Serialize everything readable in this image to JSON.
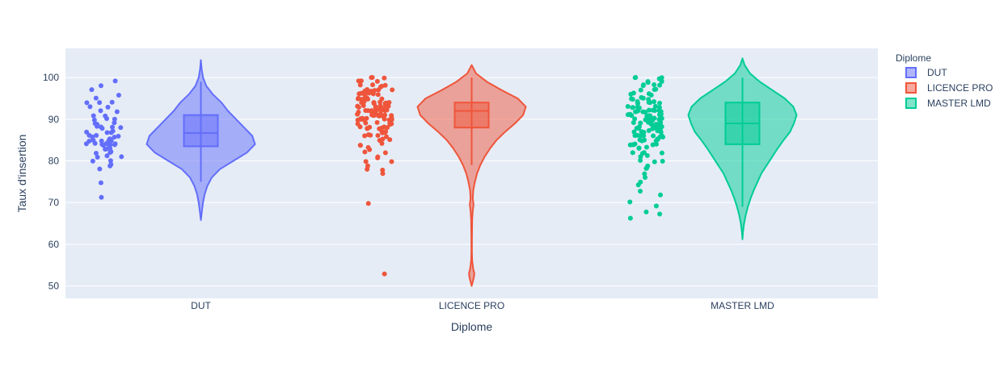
{
  "chart_data": {
    "type": "violin",
    "title": "",
    "xlabel": "Diplome",
    "ylabel": "Taux d'insertion",
    "categories": [
      "DUT",
      "LICENCE PRO",
      "MASTER LMD"
    ],
    "y_ticks": [
      50,
      60,
      70,
      80,
      90,
      100
    ],
    "y_tick_labels": [
      "50",
      "60",
      "70",
      "80",
      "90",
      "100"
    ],
    "ylim": [
      47,
      107
    ],
    "grid": true,
    "show_points": "all",
    "show_box": true,
    "legend": {
      "title": "Diplome",
      "placement": "top-right",
      "items": [
        "DUT",
        "LICENCE PRO",
        "MASTER LMD"
      ]
    },
    "series": [
      {
        "name": "DUT",
        "color": "#636efa",
        "points": [
          84,
          85,
          84,
          86,
          87,
          88,
          89,
          90,
          91,
          92,
          93,
          94,
          95,
          96,
          98,
          99,
          97,
          94,
          88,
          87,
          85,
          84,
          83,
          82,
          81,
          80,
          79,
          78,
          75,
          71,
          84,
          85,
          86,
          88,
          90,
          91,
          93,
          94,
          84,
          83,
          84,
          85,
          86,
          87,
          85,
          84,
          82,
          81,
          80,
          79,
          83,
          85,
          86,
          88,
          89,
          90,
          92,
          84,
          85,
          86,
          87,
          88,
          89,
          84,
          83,
          84,
          85,
          84,
          82,
          81
        ],
        "box": {
          "q1": 83.5,
          "median": 86.7,
          "q3": 91,
          "lower_fence": 75,
          "upper_fence": 99
        },
        "kde_range": [
          65.8,
          104.2
        ],
        "kde": [
          [
            65.8,
            0.0
          ],
          [
            68,
            0.02
          ],
          [
            70,
            0.04
          ],
          [
            72,
            0.07
          ],
          [
            74,
            0.12
          ],
          [
            76,
            0.2
          ],
          [
            78,
            0.35
          ],
          [
            80,
            0.6
          ],
          [
            82,
            0.85
          ],
          [
            84,
            1.0
          ],
          [
            86,
            0.95
          ],
          [
            88,
            0.8
          ],
          [
            90,
            0.65
          ],
          [
            92,
            0.5
          ],
          [
            94,
            0.38
          ],
          [
            96,
            0.22
          ],
          [
            98,
            0.1
          ],
          [
            100,
            0.04
          ],
          [
            102,
            0.015
          ],
          [
            104.2,
            0.0
          ]
        ]
      },
      {
        "name": "LICENCE PRO",
        "color": "#ef553b",
        "points": [
          88,
          89,
          90,
          91,
          92,
          93,
          94,
          95,
          96,
          97,
          98,
          99,
          100,
          87,
          86,
          85,
          84,
          83,
          82,
          81,
          80,
          79,
          78,
          77,
          88,
          90,
          92,
          94,
          96,
          98,
          99,
          100,
          86,
          89,
          91,
          93,
          95,
          97,
          90,
          92,
          94,
          88,
          87,
          91,
          93,
          95,
          96,
          92,
          90,
          89,
          88,
          91,
          93,
          94,
          97,
          98,
          70,
          53,
          84,
          86,
          88,
          90,
          92,
          94,
          96,
          91,
          93,
          95,
          97,
          89,
          87,
          85,
          83,
          81,
          90,
          92,
          94,
          96,
          98,
          100,
          89,
          91,
          93,
          95,
          97,
          99,
          88,
          86,
          84,
          82,
          80,
          78,
          90,
          91,
          92,
          93,
          94,
          95,
          96,
          97,
          98,
          89,
          88,
          87,
          86,
          85,
          90,
          92,
          94,
          96,
          91,
          93,
          95,
          88,
          90,
          92,
          94,
          93,
          92,
          91,
          90,
          94,
          95,
          96,
          93,
          92,
          91
        ],
        "box": {
          "q1": 88,
          "median": 92,
          "q3": 94,
          "lower_fence": 79,
          "upper_fence": 100
        },
        "kde_range": [
          50,
          103
        ],
        "kde": [
          [
            50,
            0.0
          ],
          [
            51,
            0.02
          ],
          [
            52,
            0.04
          ],
          [
            53,
            0.05
          ],
          [
            54,
            0.03
          ],
          [
            56,
            0.01
          ],
          [
            58,
            0.005
          ],
          [
            60,
            0.005
          ],
          [
            62,
            0.006
          ],
          [
            64,
            0.008
          ],
          [
            66,
            0.01
          ],
          [
            68,
            0.02
          ],
          [
            69.5,
            0.035
          ],
          [
            71,
            0.02
          ],
          [
            73,
            0.03
          ],
          [
            75,
            0.06
          ],
          [
            77,
            0.1
          ],
          [
            79,
            0.16
          ],
          [
            81,
            0.24
          ],
          [
            83,
            0.34
          ],
          [
            85,
            0.46
          ],
          [
            87,
            0.62
          ],
          [
            89,
            0.8
          ],
          [
            91,
            0.95
          ],
          [
            93,
            1.0
          ],
          [
            95,
            0.85
          ],
          [
            97,
            0.55
          ],
          [
            99,
            0.28
          ],
          [
            101,
            0.08
          ],
          [
            103,
            0.0
          ]
        ]
      },
      {
        "name": "MASTER LMD",
        "color": "#00cc96",
        "points": [
          66,
          67,
          68,
          69,
          70,
          72,
          73,
          74,
          75,
          76,
          77,
          78,
          79,
          80,
          81,
          82,
          83,
          84,
          85,
          86,
          87,
          88,
          89,
          90,
          91,
          92,
          93,
          94,
          95,
          96,
          97,
          98,
          99,
          100,
          84,
          86,
          88,
          90,
          92,
          94,
          96,
          98,
          100,
          85,
          87,
          89,
          91,
          93,
          95,
          97,
          99,
          83,
          85,
          87,
          89,
          91,
          93,
          95,
          82,
          84,
          86,
          88,
          90,
          92,
          94,
          81,
          83,
          85,
          87,
          89,
          91,
          93,
          95,
          97,
          99,
          90,
          92,
          94,
          96,
          98,
          100,
          88,
          89,
          90,
          91,
          92,
          93,
          94,
          95,
          86,
          87,
          88,
          89,
          90,
          91,
          92,
          93,
          84,
          85,
          86,
          87,
          88,
          89,
          90,
          80,
          82,
          84,
          86,
          88,
          90,
          92,
          94,
          78,
          80,
          82,
          84,
          86,
          88,
          90,
          92,
          94,
          96,
          98,
          100,
          89,
          90,
          91,
          92,
          93,
          85,
          86,
          87,
          88,
          89,
          90,
          91,
          92
        ],
        "box": {
          "q1": 84,
          "median": 89,
          "q3": 94,
          "lower_fence": 69,
          "upper_fence": 100
        },
        "kde_range": [
          61.2,
          104.6
        ],
        "kde": [
          [
            61.2,
            0.0
          ],
          [
            63,
            0.01
          ],
          [
            65,
            0.03
          ],
          [
            67,
            0.06
          ],
          [
            69,
            0.1
          ],
          [
            71,
            0.15
          ],
          [
            73,
            0.21
          ],
          [
            75,
            0.28
          ],
          [
            77,
            0.35
          ],
          [
            79,
            0.45
          ],
          [
            81,
            0.55
          ],
          [
            83,
            0.65
          ],
          [
            85,
            0.76
          ],
          [
            87,
            0.88
          ],
          [
            89,
            0.95
          ],
          [
            91,
            1.0
          ],
          [
            93,
            0.94
          ],
          [
            95,
            0.78
          ],
          [
            97,
            0.55
          ],
          [
            99,
            0.32
          ],
          [
            101,
            0.14
          ],
          [
            103,
            0.04
          ],
          [
            104.6,
            0.0
          ]
        ]
      }
    ]
  }
}
